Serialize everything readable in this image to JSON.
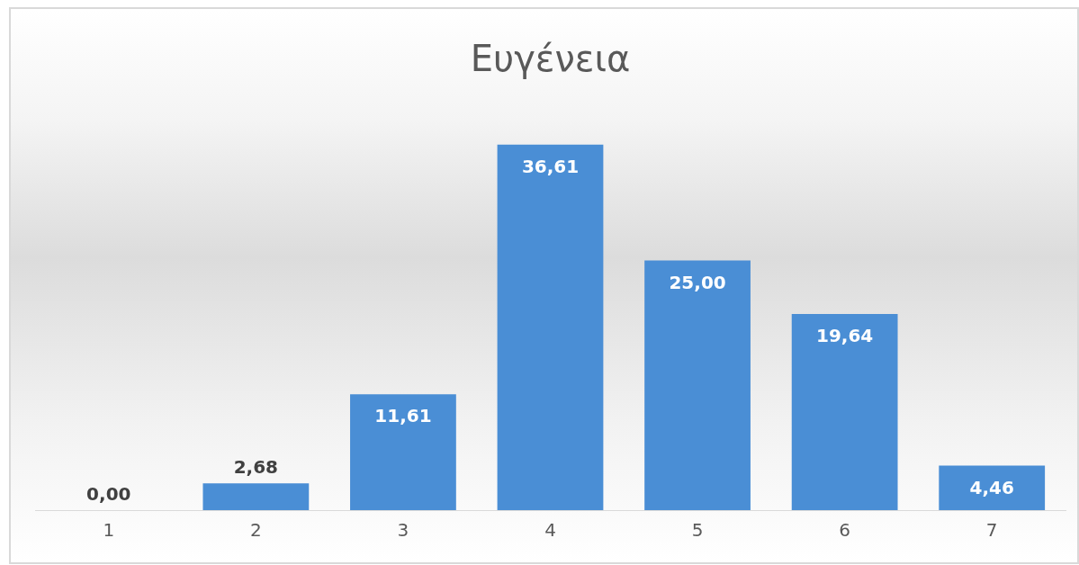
{
  "chart_data": {
    "type": "bar",
    "title": "Ευγένεια",
    "categories": [
      "1",
      "2",
      "3",
      "4",
      "5",
      "6",
      "7"
    ],
    "values": [
      0,
      2.68,
      11.61,
      36.61,
      25,
      19.64,
      4.46
    ],
    "value_labels": [
      "0,00",
      "2,68",
      "11,61",
      "36,61",
      "25,00",
      "19,64",
      "4,46"
    ],
    "color": "#4a8ed5",
    "grid": false,
    "legend": false
  }
}
